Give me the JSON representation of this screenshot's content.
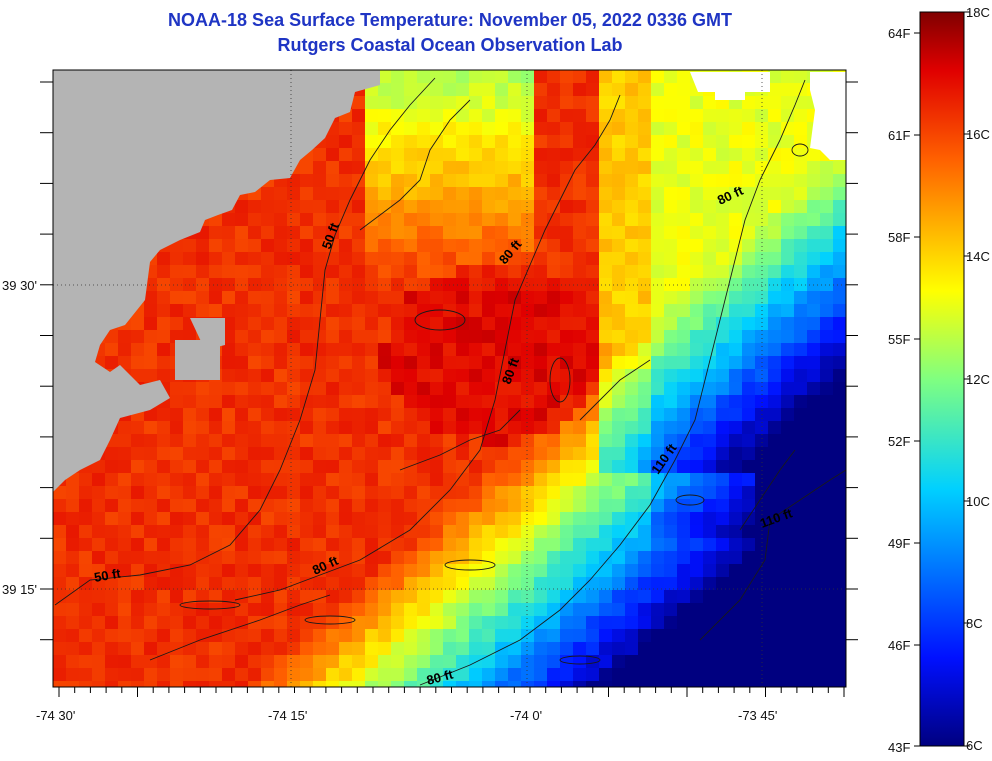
{
  "header": {
    "title": "NOAA-18 Sea Surface Temperature:  November 05, 2022 0336 GMT",
    "subtitle": "Rutgers Coastal Ocean Observation Lab"
  },
  "axes": {
    "lon_ticks": [
      "-74 30'",
      "-74 15'",
      "-74 0'",
      "-73 45'"
    ],
    "lat_ticks": [
      "39 30'",
      "39 15'"
    ]
  },
  "colorbar": {
    "fahrenheit_labels": [
      "64F",
      "61F",
      "58F",
      "55F",
      "52F",
      "49F",
      "46F",
      "43F"
    ],
    "celsius_labels": [
      "18C",
      "16C",
      "14C",
      "12C",
      "10C",
      "8C",
      "6C"
    ],
    "range_c": [
      6,
      18
    ]
  },
  "contours": {
    "labels": [
      "50 ft",
      "50 ft",
      "80 ft",
      "80 ft",
      "80 ft",
      "80 ft",
      "80 ft",
      "110 ft",
      "110 ft"
    ]
  },
  "colors": {
    "land": "#b4b4b4",
    "title": "#1f35c4"
  }
}
